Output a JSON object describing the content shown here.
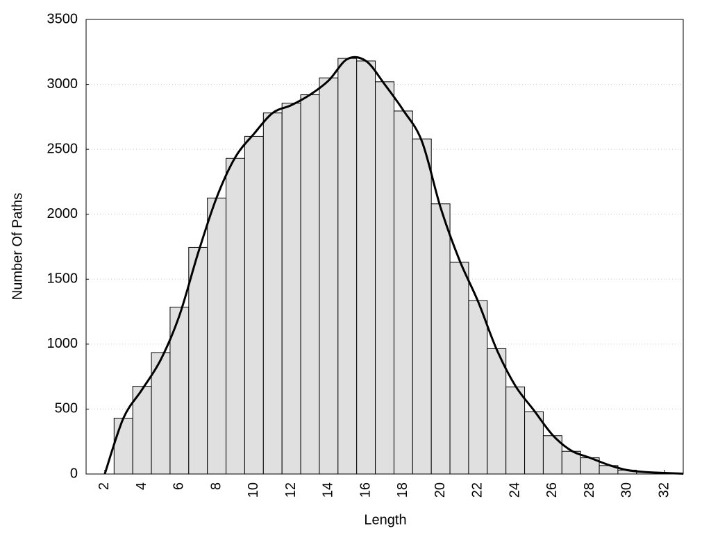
{
  "chart_data": {
    "type": "histogram",
    "x_label": "Length",
    "y_label": "Number Of Paths",
    "bins": [
      2.5,
      3.5,
      4.5,
      5.5,
      6.5,
      7.5,
      8.5,
      9.5,
      10.5,
      11.5,
      12.5,
      13.5,
      14.5,
      15.5,
      16.5,
      17.5,
      18.5,
      19.5,
      20.5,
      21.5,
      22.5,
      23.5,
      24.5,
      25.5,
      26.5,
      27.5,
      28.5,
      29.5,
      30.5,
      31.5,
      32.5
    ],
    "counts": [
      430,
      675,
      935,
      1285,
      1745,
      2125,
      2430,
      2600,
      2780,
      2855,
      2920,
      3050,
      3200,
      3180,
      3020,
      2795,
      2580,
      2080,
      1630,
      1335,
      965,
      670,
      480,
      295,
      175,
      125,
      65,
      30,
      15,
      10
    ],
    "color": "#e0e0e0",
    "curve": {
      "x": [
        2,
        3,
        4,
        5,
        6,
        7,
        8,
        9,
        10,
        11,
        12,
        13,
        14,
        15,
        16,
        17,
        18,
        19,
        20,
        21,
        22,
        23,
        24,
        25,
        26,
        27,
        28,
        29,
        30,
        31,
        32,
        33
      ],
      "values": [
        0,
        430,
        650,
        880,
        1220,
        1700,
        2130,
        2440,
        2620,
        2780,
        2840,
        2920,
        3030,
        3195,
        3180,
        3000,
        2800,
        2560,
        2050,
        1650,
        1330,
        960,
        680,
        490,
        300,
        180,
        125,
        70,
        30,
        15,
        8,
        3
      ],
      "color": "#000000"
    },
    "xlim": [
      1,
      33
    ],
    "ylim": [
      0,
      3500
    ],
    "xticks": [
      2,
      4,
      6,
      8,
      10,
      12,
      14,
      16,
      18,
      20,
      22,
      24,
      26,
      28,
      30,
      32
    ],
    "yticks": [
      0,
      500,
      1000,
      1500,
      2000,
      2500,
      3000,
      3500
    ],
    "grid": true
  }
}
